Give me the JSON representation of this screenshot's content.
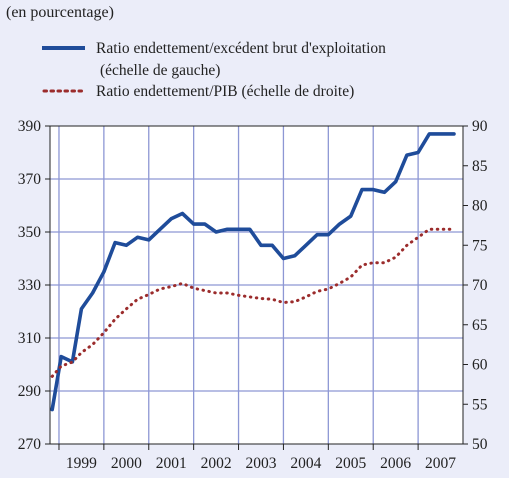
{
  "chart_data": {
    "type": "line",
    "subtitle": "(en pourcentage)",
    "categories": [
      "1999",
      "2000",
      "2001",
      "2002",
      "2003",
      "2004",
      "2005",
      "2006",
      "2007"
    ],
    "x_range": [
      1998.8,
      2008.0
    ],
    "grid": true,
    "legend_position": "top-left",
    "y_left": {
      "range": [
        270,
        390
      ],
      "ticks": [
        270,
        290,
        310,
        330,
        350,
        370,
        390
      ]
    },
    "y_right": {
      "range": [
        50,
        90
      ],
      "ticks": [
        50,
        55,
        60,
        65,
        70,
        75,
        80,
        85,
        90
      ]
    },
    "series": [
      {
        "name": "Ratio endettement/excédent brut d'exploitation",
        "name_line2": "(échelle de gauche)",
        "axis": "left",
        "style": "solid",
        "color": "#1f4c9a",
        "x": [
          1998.85,
          1999.05,
          1999.3,
          1999.5,
          1999.75,
          2000.0,
          2000.25,
          2000.5,
          2000.75,
          2001.0,
          2001.25,
          2001.5,
          2001.75,
          2002.0,
          2002.25,
          2002.5,
          2002.75,
          2003.0,
          2003.25,
          2003.5,
          2003.75,
          2004.0,
          2004.25,
          2004.5,
          2004.75,
          2005.0,
          2005.25,
          2005.5,
          2005.75,
          2006.0,
          2006.25,
          2006.5,
          2006.75,
          2007.0,
          2007.25,
          2007.5,
          2007.8
        ],
        "values": [
          283,
          303,
          301,
          321,
          327,
          335,
          346,
          345,
          348,
          347,
          351,
          355,
          357,
          353,
          353,
          350,
          351,
          351,
          351,
          345,
          345,
          340,
          341,
          345,
          349,
          349,
          353,
          356,
          366,
          366,
          365,
          369,
          379,
          380,
          387,
          387,
          387
        ]
      },
      {
        "name": "Ratio endettement/PIB (échelle de droite)",
        "axis": "right",
        "style": "dotted",
        "color": "#9b2c2c",
        "x": [
          1998.85,
          1999.05,
          1999.3,
          1999.5,
          1999.75,
          2000.0,
          2000.25,
          2000.5,
          2000.75,
          2001.0,
          2001.25,
          2001.5,
          2001.75,
          2002.0,
          2002.25,
          2002.5,
          2002.75,
          2003.0,
          2003.25,
          2003.5,
          2003.75,
          2004.0,
          2004.25,
          2004.5,
          2004.75,
          2005.0,
          2005.25,
          2005.5,
          2005.75,
          2006.0,
          2006.25,
          2006.5,
          2006.75,
          2007.0,
          2007.25,
          2007.5,
          2007.8
        ],
        "values": [
          58.5,
          59.8,
          60.3,
          61.5,
          62.5,
          64.0,
          65.7,
          67.0,
          68.2,
          68.8,
          69.5,
          69.8,
          70.2,
          69.6,
          69.3,
          69.0,
          69.0,
          68.7,
          68.5,
          68.3,
          68.2,
          67.8,
          67.9,
          68.5,
          69.2,
          69.5,
          70.2,
          71.0,
          72.5,
          72.8,
          72.8,
          73.5,
          75.0,
          76.0,
          77.0,
          77.0,
          77.0
        ]
      }
    ]
  }
}
